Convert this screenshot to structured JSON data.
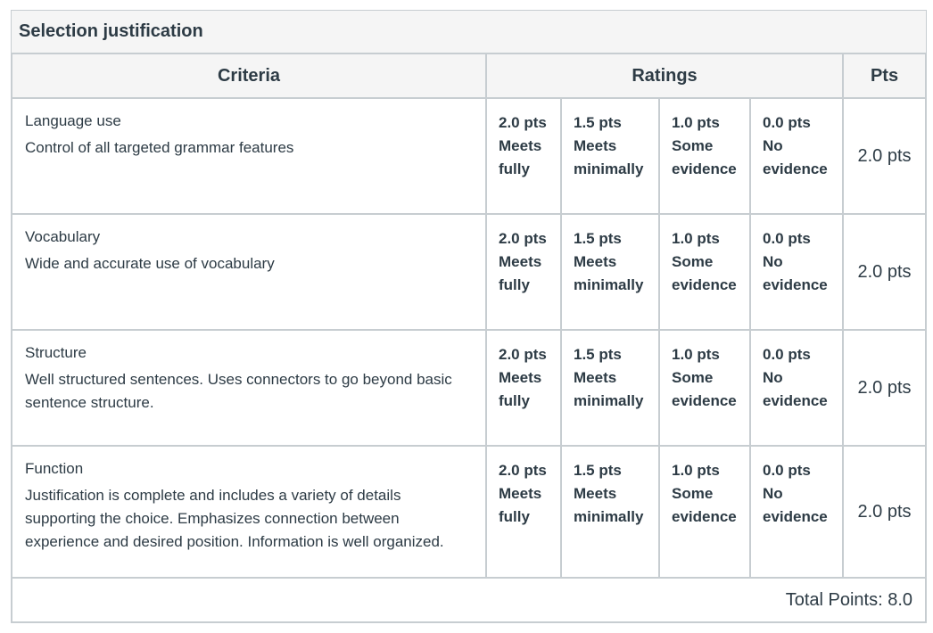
{
  "rubric": {
    "title": "Selection justification",
    "headers": {
      "criteria": "Criteria",
      "ratings": "Ratings",
      "pts": "Pts"
    },
    "rows": [
      {
        "title": "Language use",
        "description": "Control of all targeted grammar features",
        "ratings": [
          {
            "points": "2.0 pts",
            "label": "Meets fully"
          },
          {
            "points": "1.5 pts",
            "label": "Meets minimally"
          },
          {
            "points": "1.0 pts",
            "label": "Some evidence"
          },
          {
            "points": "0.0 pts",
            "label": "No evidence"
          }
        ],
        "pts": "2.0 pts"
      },
      {
        "title": "Vocabulary",
        "description": "Wide and accurate use of vocabulary",
        "ratings": [
          {
            "points": "2.0 pts",
            "label": "Meets fully"
          },
          {
            "points": "1.5 pts",
            "label": "Meets minimally"
          },
          {
            "points": "1.0 pts",
            "label": "Some evidence"
          },
          {
            "points": "0.0 pts",
            "label": "No evidence"
          }
        ],
        "pts": "2.0 pts"
      },
      {
        "title": "Structure",
        "description": "Well structured sentences. Uses connectors to go beyond basic sentence structure.",
        "ratings": [
          {
            "points": "2.0 pts",
            "label": "Meets fully"
          },
          {
            "points": "1.5 pts",
            "label": "Meets minimally"
          },
          {
            "points": "1.0 pts",
            "label": "Some evidence"
          },
          {
            "points": "0.0 pts",
            "label": "No evidence"
          }
        ],
        "pts": "2.0 pts"
      },
      {
        "title": "Function",
        "description": "Justification is complete and includes a variety of details supporting the choice. Emphasizes connection between experience and desired position. Information is well organized.",
        "ratings": [
          {
            "points": "2.0 pts",
            "label": "Meets fully"
          },
          {
            "points": "1.5 pts",
            "label": "Meets minimally"
          },
          {
            "points": "1.0 pts",
            "label": "Some evidence"
          },
          {
            "points": "0.0 pts",
            "label": "No evidence"
          }
        ],
        "pts": "2.0 pts"
      }
    ],
    "total": "Total Points: 8.0"
  }
}
